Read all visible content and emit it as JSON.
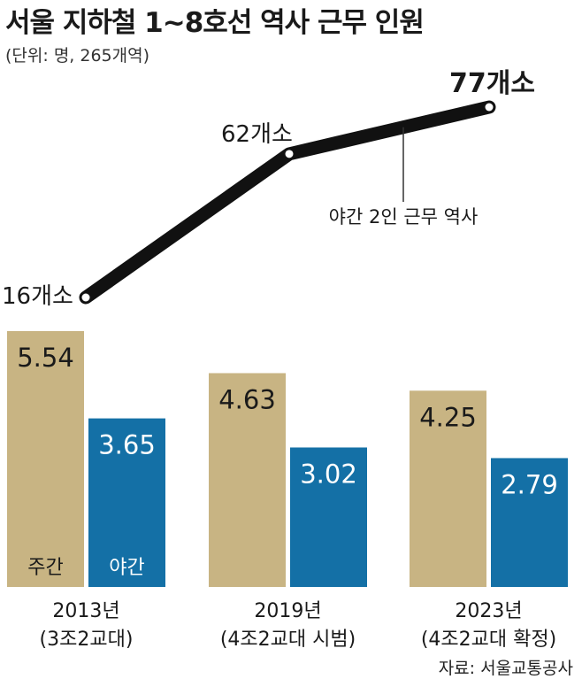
{
  "title": "서울 지하철 1~8호선 역사 근무 인원",
  "unit": "(단위: 명, 265개역)",
  "source": "자료: 서울교통공사",
  "colors": {
    "day": "#c8b483",
    "night": "#1470a6",
    "line": "#111111"
  },
  "chart_data": [
    {
      "type": "line",
      "x": [
        "2013년",
        "2019년",
        "2023년"
      ],
      "series": [
        {
          "values": [
            16,
            62,
            77
          ],
          "labels": [
            "16개소",
            "62개소",
            "77개소"
          ]
        }
      ],
      "annotation": "야간 2인 근무 역사"
    },
    {
      "type": "bar",
      "categories": [
        "2013년\n(3조2교대)",
        "2019년\n(4조2교대 시범)",
        "2023년\n(4조2교대 확정)"
      ],
      "category_years": [
        "2013년",
        "2019년",
        "2023년"
      ],
      "category_notes": [
        "(3조2교대)",
        "(4조2교대 시범)",
        "(4조2교대 확정)"
      ],
      "series": [
        {
          "name": "주간",
          "values": [
            5.54,
            4.63,
            4.25
          ],
          "labels": [
            "5.54",
            "4.63",
            "4.25"
          ]
        },
        {
          "name": "야간",
          "values": [
            3.65,
            3.02,
            2.79
          ],
          "labels": [
            "3.65",
            "3.02",
            "2.79"
          ]
        }
      ],
      "ylim": [
        0,
        5.54
      ]
    }
  ]
}
